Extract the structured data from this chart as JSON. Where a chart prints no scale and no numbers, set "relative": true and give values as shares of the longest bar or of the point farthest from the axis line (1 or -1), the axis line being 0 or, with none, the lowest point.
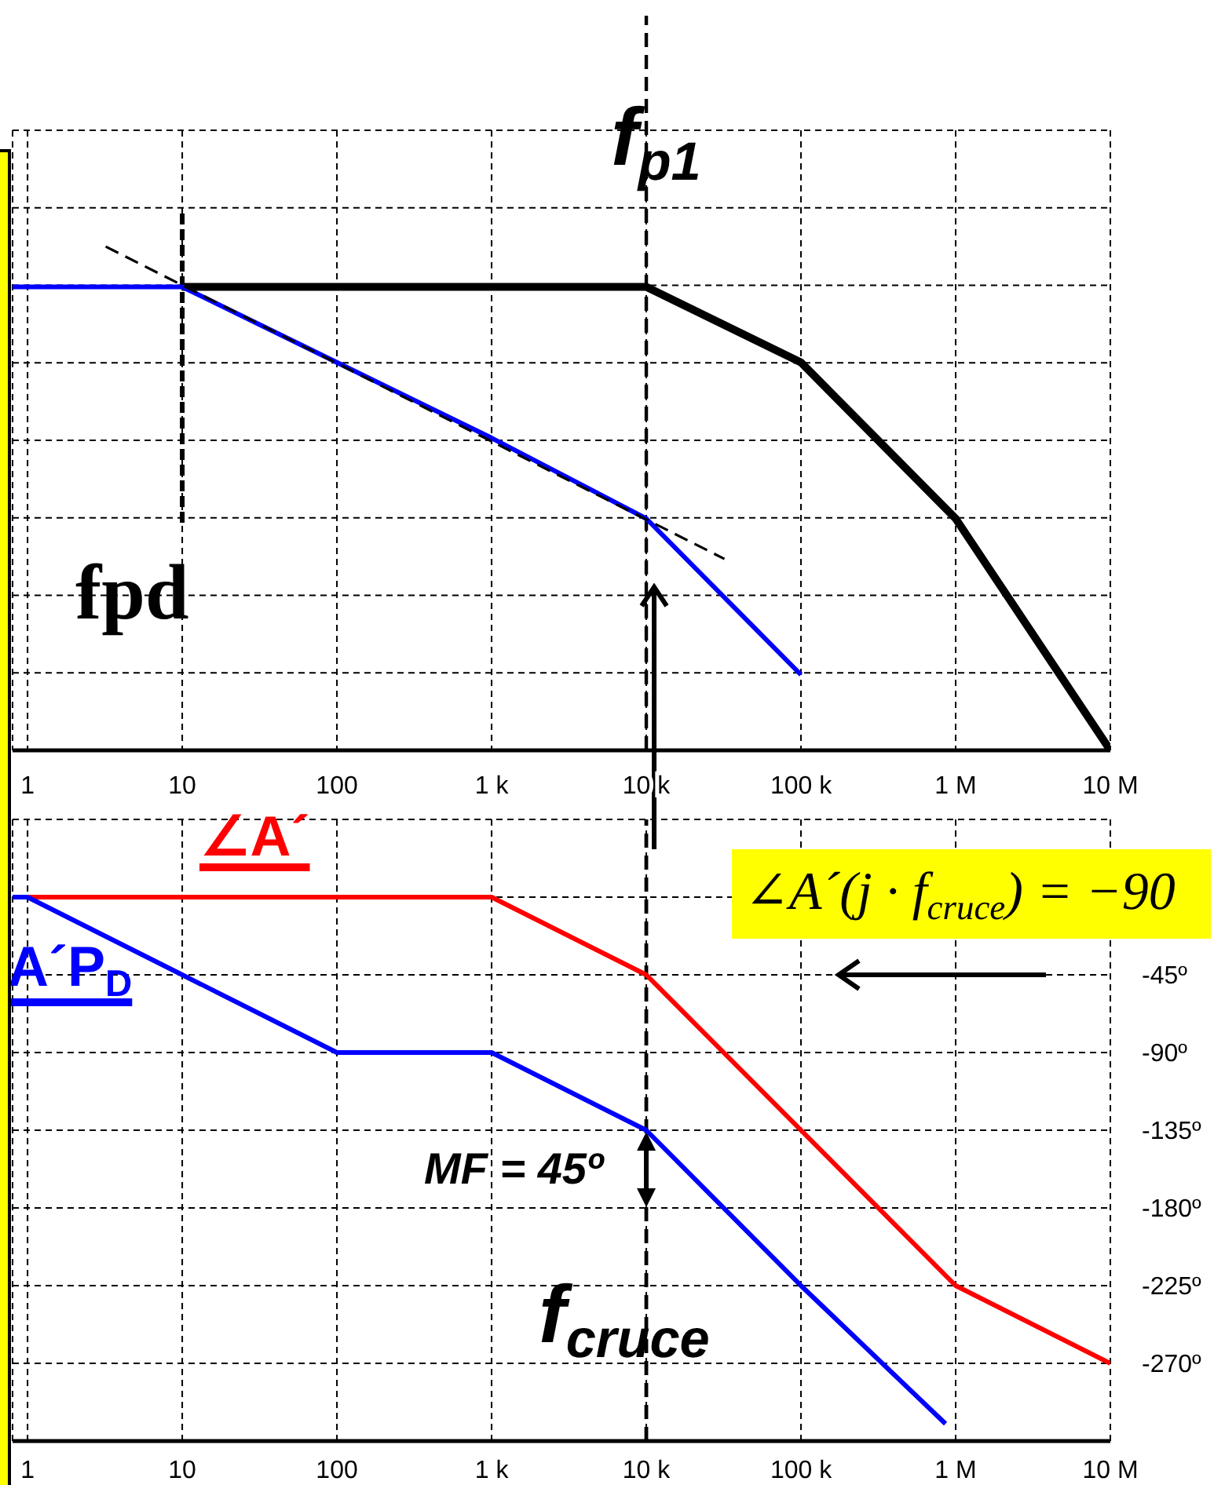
{
  "chart_data": [
    {
      "type": "line",
      "xlim": [
        0.8,
        10000000
      ],
      "xticks": [
        {
          "value": 1,
          "label": "1"
        },
        {
          "value": 10,
          "label": "10"
        },
        {
          "value": 100,
          "label": "100"
        },
        {
          "value": 1000,
          "label": "1 k"
        },
        {
          "value": 10000,
          "label": "10 k"
        },
        {
          "value": 100000,
          "label": "100 k"
        },
        {
          "value": 1000000,
          "label": "1 M"
        },
        {
          "value": 10000000,
          "label": "10 M"
        }
      ],
      "log": "x",
      "relative": true,
      "grid": true,
      "marker": "none",
      "series": [
        {
          "color": "#000000",
          "x": [
            10,
            10000,
            100000,
            1000000,
            10000000
          ],
          "values": [
            0.92,
            0.92,
            0.77,
            0.46,
            0
          ]
        },
        {
          "color": "#0000ff",
          "x": [
            0.8,
            10,
            100,
            1000,
            10000,
            100000
          ],
          "values": [
            0.92,
            0.92,
            0.77,
            0.62,
            0.46,
            0.15
          ]
        },
        {
          "color": "#000000",
          "line_style": "dashed",
          "x": [
            3.2,
            32000
          ],
          "values": [
            1,
            0.38
          ]
        }
      ],
      "ref_lines": [
        {
          "axis": "x",
          "value": 10,
          "label": "fpd",
          "color": "#000000",
          "line_style": "dashed"
        },
        {
          "axis": "x",
          "value": 10000,
          "label": "f$_{p1}$",
          "color": "#000000",
          "line_style": "dashed"
        }
      ]
    },
    {
      "type": "line",
      "xlim": [
        0.8,
        10000000
      ],
      "xticks": [
        {
          "value": 1,
          "label": "1"
        },
        {
          "value": 10,
          "label": "10"
        },
        {
          "value": 100,
          "label": "100"
        },
        {
          "value": 1000,
          "label": "1 k"
        },
        {
          "value": 10000,
          "label": "10 k"
        },
        {
          "value": 100000,
          "label": "100 k"
        },
        {
          "value": 1000000,
          "label": "1 M"
        },
        {
          "value": 10000000,
          "label": "10 M"
        }
      ],
      "log": "x",
      "grid": true,
      "marker": "none",
      "ylim": [
        -315,
        45
      ],
      "yticks": [
        {
          "value": 45,
          "label": null
        },
        {
          "value": 0,
          "label": null
        },
        {
          "value": -45,
          "label": "-45º"
        },
        {
          "value": -90,
          "label": "-90º"
        },
        {
          "value": -135,
          "label": "-135º"
        },
        {
          "value": -180,
          "label": "-180º"
        },
        {
          "value": -225,
          "label": "-225º"
        },
        {
          "value": -270,
          "label": "-270º"
        }
      ],
      "series": [
        {
          "name": "∠A´",
          "color": "#ff0000",
          "x": [
            0.8,
            1000,
            10000,
            100000,
            1000000,
            10000000
          ],
          "values": [
            0,
            0,
            -45,
            -135,
            -225,
            -270
          ]
        },
        {
          "name": "A´P$_{D}$",
          "color": "#0000ff",
          "x": [
            0.8,
            1,
            10,
            100,
            1000,
            10000,
            100000,
            860000
          ],
          "values": [
            0,
            0,
            -45,
            -90,
            -90,
            -135,
            -225,
            -305
          ]
        }
      ],
      "ref_lines": [
        {
          "axis": "x",
          "value": 10000,
          "label": "f$_{cruce}$",
          "color": "#000000",
          "line_style": "dashed"
        }
      ],
      "annotations": [
        "∠A´(j · f$_{cruce}$) = −90",
        "MF = 45º"
      ]
    }
  ]
}
